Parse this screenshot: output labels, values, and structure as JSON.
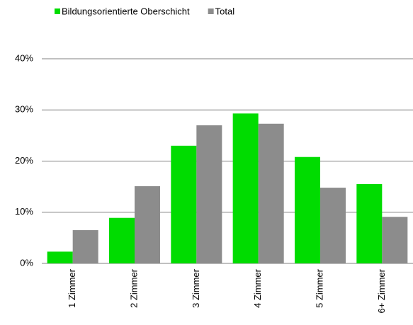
{
  "chart_data": {
    "type": "bar",
    "categories": [
      "1 Zimmer",
      "2 Zimmer",
      "3 Zimmer",
      "4 Zimmer",
      "5 Zimmer",
      "6+ Zimmer"
    ],
    "series": [
      {
        "name": "Bildungsorientierte Oberschicht",
        "color": "#00dc00",
        "values": [
          2.3,
          8.9,
          23.0,
          29.3,
          20.8,
          15.5
        ]
      },
      {
        "name": "Total",
        "color": "#8c8c8c",
        "values": [
          6.5,
          15.1,
          27.0,
          27.3,
          14.8,
          9.1
        ]
      }
    ],
    "ylim": [
      0,
      40
    ],
    "yticks": [
      {
        "value": 0,
        "label": "0%"
      },
      {
        "value": 10,
        "label": "10%"
      },
      {
        "value": 20,
        "label": "20%"
      },
      {
        "value": 30,
        "label": "30%"
      },
      {
        "value": 40,
        "label": "40%"
      }
    ],
    "grid": true,
    "legend": "top"
  }
}
